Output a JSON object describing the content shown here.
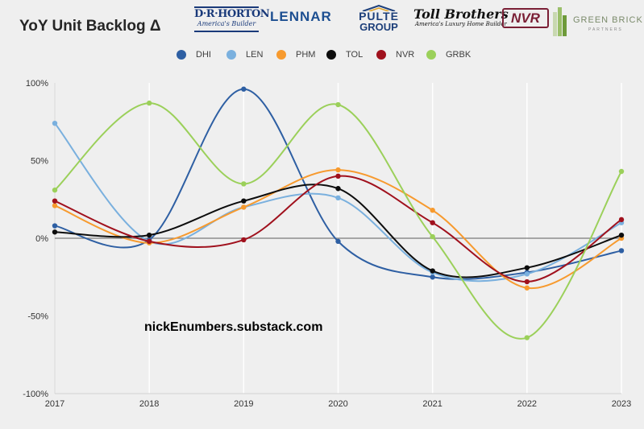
{
  "title": "YoY Unit Backlog Δ",
  "logos": {
    "drhorton": {
      "main": "D·R·HORTON",
      "sub": "America's Builder"
    },
    "lennar": "LENNAR",
    "pulte": {
      "line1": "PULTE",
      "line2": "GROUP"
    },
    "toll": {
      "main": "Toll Brothers",
      "sub": "America's Luxury Home Builder"
    },
    "nvr": "NVR",
    "greenbrick": {
      "line1": "GREEN BRICK",
      "line2": "PARTNERS"
    }
  },
  "watermark": "nickEnumbers.substack.com",
  "chart_data": {
    "type": "line",
    "title": "YoY Unit Backlog Δ",
    "x": [
      2017,
      2018,
      2019,
      2020,
      2021,
      2022,
      2023
    ],
    "x_tick_labels": [
      "2017",
      "2018",
      "2019",
      "2020",
      "2021",
      "2022",
      "2023"
    ],
    "y_tick_labels": [
      "100%",
      "50%",
      "0%",
      "-50%",
      "-100%"
    ],
    "y_ticks": [
      100,
      50,
      0,
      -50,
      -100
    ],
    "ylim": [
      -100,
      100
    ],
    "y_unit": "%",
    "grid": "vertical",
    "zero_line": true,
    "legend_position": "top-center",
    "smooth": true,
    "series": [
      {
        "name": "DHI",
        "color": "#2e5fa3",
        "values": [
          8,
          -1,
          96,
          -2,
          -25,
          -22,
          -8
        ]
      },
      {
        "name": "LEN",
        "color": "#7ab0de",
        "values": [
          74,
          -2,
          20,
          26,
          -22,
          -23,
          10
        ]
      },
      {
        "name": "PHM",
        "color": "#f79a2e",
        "values": [
          21,
          -3,
          20,
          44,
          18,
          -32,
          0
        ]
      },
      {
        "name": "TOL",
        "color": "#0d0d0d",
        "values": [
          4,
          2,
          24,
          32,
          -21,
          -19,
          2
        ]
      },
      {
        "name": "NVR",
        "color": "#a0111d",
        "values": [
          24,
          -2,
          -1,
          40,
          10,
          -28,
          12
        ]
      },
      {
        "name": "GRBK",
        "color": "#9bd05a",
        "values": [
          31,
          87,
          35,
          86,
          1,
          -64,
          43
        ]
      }
    ]
  }
}
